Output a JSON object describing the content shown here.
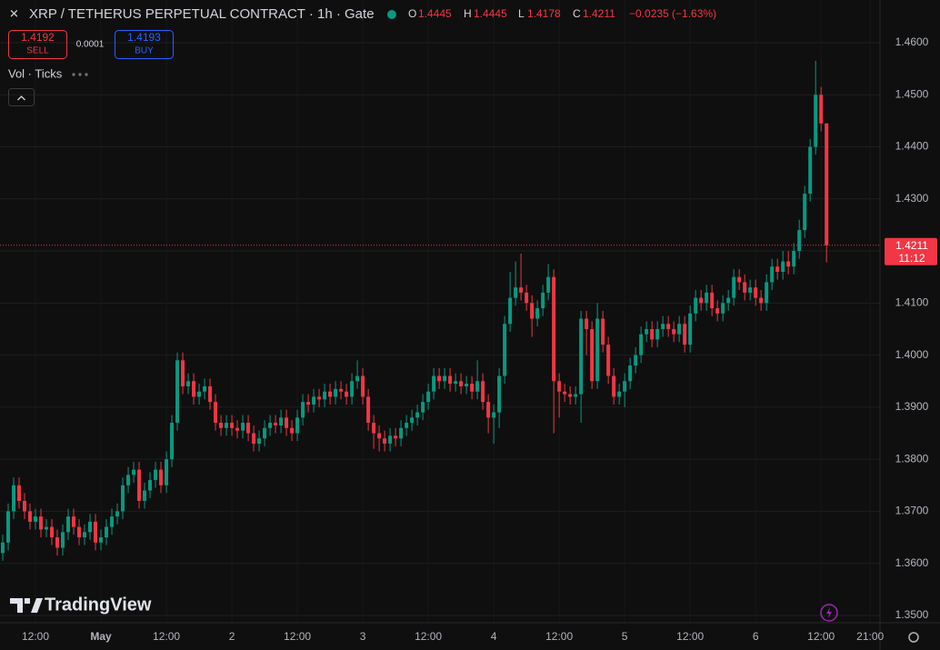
{
  "header": {
    "symbol": "XRP / TETHERUS PERPETUAL CONTRACT · 1h · Gate",
    "o": "O",
    "h": "H",
    "l": "L",
    "c": "C",
    "change": "−0.0235 (−1.63%)"
  },
  "trade": {
    "sell_price": "1.4192",
    "sell": "SELL",
    "spread": "0.0001",
    "buy_price": "1.4193",
    "buy": "BUY"
  },
  "indicator": "Vol · Ticks",
  "countdown": "11:12",
  "brand": "TradingView",
  "chart_data": {
    "type": "candlestick",
    "up_color": "#089981",
    "down_color": "#f23645",
    "grid": true,
    "xlim": [
      -0.5,
      160.8
    ],
    "ylim": [
      1.3486,
      1.4682
    ],
    "yticks": [
      {
        "value": 1.35,
        "label": "1.3500"
      },
      {
        "value": 1.36,
        "label": "1.3600"
      },
      {
        "value": 1.37,
        "label": "1.3700"
      },
      {
        "value": 1.38,
        "label": "1.3800"
      },
      {
        "value": 1.39,
        "label": "1.3900"
      },
      {
        "value": 1.4,
        "label": "1.4000"
      },
      {
        "value": 1.41,
        "label": "1.4100"
      },
      {
        "value": 1.42,
        "label": "1.4200"
      },
      {
        "value": 1.43,
        "label": "1.4300"
      },
      {
        "value": 1.44,
        "label": "1.4400"
      },
      {
        "value": 1.45,
        "label": "1.4500"
      },
      {
        "value": 1.46,
        "label": "1.4600"
      }
    ],
    "xticks": [
      {
        "value": 6,
        "label": "12:00"
      },
      {
        "value": 18,
        "label": "May"
      },
      {
        "value": 30,
        "label": "12:00"
      },
      {
        "value": 42,
        "label": "2"
      },
      {
        "value": 54,
        "label": "12:00"
      },
      {
        "value": 66,
        "label": "3"
      },
      {
        "value": 78,
        "label": "12:00"
      },
      {
        "value": 90,
        "label": "4"
      },
      {
        "value": 102,
        "label": "12:00"
      },
      {
        "value": 114,
        "label": "5"
      },
      {
        "value": 126,
        "label": "12:00"
      },
      {
        "value": 138,
        "label": "6"
      },
      {
        "value": 150,
        "label": "12:00"
      },
      {
        "value": 159,
        "label": "21:00"
      }
    ],
    "open": [
      1.362,
      1.364,
      1.37,
      1.375,
      1.372,
      1.37,
      1.368,
      1.369,
      1.3665,
      1.367,
      1.365,
      1.363,
      1.366,
      1.369,
      1.367,
      1.365,
      1.366,
      1.368,
      1.364,
      1.365,
      1.367,
      1.369,
      1.37,
      1.375,
      1.377,
      1.378,
      1.372,
      1.374,
      1.376,
      1.378,
      1.375,
      1.38,
      1.387,
      1.399,
      1.394,
      1.395,
      1.392,
      1.393,
      1.394,
      1.391,
      1.387,
      1.386,
      1.387,
      1.386,
      1.3855,
      1.387,
      1.385,
      1.383,
      1.384,
      1.386,
      1.387,
      1.3865,
      1.388,
      1.386,
      1.385,
      1.388,
      1.391,
      1.3905,
      1.392,
      1.3915,
      1.393,
      1.392,
      1.3935,
      1.393,
      1.392,
      1.395,
      1.396,
      1.392,
      1.387,
      1.385,
      1.384,
      1.383,
      1.3845,
      1.384,
      1.386,
      1.387,
      1.388,
      1.389,
      1.391,
      1.393,
      1.396,
      1.395,
      1.396,
      1.3945,
      1.395,
      1.394,
      1.3945,
      1.393,
      1.395,
      1.391,
      1.388,
      1.389,
      1.396,
      1.406,
      1.411,
      1.413,
      1.412,
      1.41,
      1.407,
      1.409,
      1.412,
      1.415,
      1.395,
      1.393,
      1.3925,
      1.392,
      1.3925,
      1.407,
      1.405,
      1.395,
      1.407,
      1.402,
      1.396,
      1.392,
      1.393,
      1.395,
      1.398,
      1.4,
      1.404,
      1.405,
      1.403,
      1.405,
      1.406,
      1.405,
      1.404,
      1.406,
      1.402,
      1.408,
      1.411,
      1.41,
      1.412,
      1.409,
      1.408,
      1.41,
      1.411,
      1.415,
      1.414,
      1.412,
      1.413,
      1.411,
      1.41,
      1.414,
      1.417,
      1.416,
      1.418,
      1.417,
      1.42,
      1.424,
      1.431,
      1.44,
      1.45,
      1.4445
    ],
    "high": [
      1.3655,
      1.3715,
      1.3765,
      1.3765,
      1.3735,
      1.3715,
      1.3705,
      1.3705,
      1.3685,
      1.3685,
      1.3665,
      1.3675,
      1.3705,
      1.3705,
      1.3685,
      1.3675,
      1.3695,
      1.3695,
      1.3665,
      1.3685,
      1.3705,
      1.3715,
      1.3765,
      1.3785,
      1.3795,
      1.3795,
      1.3755,
      1.3775,
      1.3795,
      1.3795,
      1.3815,
      1.3885,
      1.4005,
      1.4005,
      1.3965,
      1.3965,
      1.3945,
      1.3955,
      1.3955,
      1.3925,
      1.3885,
      1.3885,
      1.3885,
      1.3875,
      1.3885,
      1.3885,
      1.3865,
      1.3855,
      1.3875,
      1.3885,
      1.3885,
      1.3895,
      1.3895,
      1.3875,
      1.3895,
      1.3925,
      1.3925,
      1.3935,
      1.3935,
      1.3945,
      1.3945,
      1.395,
      1.395,
      1.3945,
      1.3965,
      1.399,
      1.3975,
      1.3935,
      1.3885,
      1.3865,
      1.3855,
      1.386,
      1.386,
      1.3875,
      1.3885,
      1.3895,
      1.3905,
      1.3925,
      1.3945,
      1.3975,
      1.3975,
      1.3975,
      1.3975,
      1.3965,
      1.3965,
      1.396,
      1.396,
      1.399,
      1.3965,
      1.3925,
      1.3905,
      1.3975,
      1.4075,
      1.416,
      1.418,
      1.4195,
      1.4135,
      1.4115,
      1.4105,
      1.4135,
      1.4175,
      1.4165,
      1.3965,
      1.3945,
      1.394,
      1.394,
      1.4085,
      1.4085,
      1.4065,
      1.41,
      1.4085,
      1.4035,
      1.3975,
      1.3945,
      1.3965,
      1.3995,
      1.4015,
      1.4055,
      1.4065,
      1.4065,
      1.4065,
      1.4075,
      1.4075,
      1.4065,
      1.4075,
      1.4075,
      1.4095,
      1.4125,
      1.4125,
      1.4135,
      1.4135,
      1.4105,
      1.4115,
      1.4125,
      1.4165,
      1.4165,
      1.4155,
      1.4145,
      1.4145,
      1.4125,
      1.4155,
      1.4185,
      1.4185,
      1.42,
      1.42,
      1.4215,
      1.426,
      1.4325,
      1.4415,
      1.4565,
      1.4515,
      1.4445
    ],
    "low": [
      1.3605,
      1.3625,
      1.3685,
      1.3705,
      1.3685,
      1.3665,
      1.3665,
      1.365,
      1.365,
      1.3635,
      1.3615,
      1.3615,
      1.3645,
      1.3655,
      1.3635,
      1.3635,
      1.3645,
      1.3625,
      1.3625,
      1.3635,
      1.3655,
      1.3675,
      1.3685,
      1.3735,
      1.3755,
      1.3705,
      1.3705,
      1.3725,
      1.3745,
      1.3735,
      1.3735,
      1.3785,
      1.3855,
      1.3925,
      1.3925,
      1.3905,
      1.3905,
      1.3915,
      1.3895,
      1.3855,
      1.3845,
      1.3845,
      1.3845,
      1.384,
      1.384,
      1.3835,
      1.3815,
      1.3815,
      1.3825,
      1.3845,
      1.385,
      1.385,
      1.3845,
      1.3835,
      1.3835,
      1.3865,
      1.389,
      1.389,
      1.39,
      1.39,
      1.3905,
      1.3905,
      1.3915,
      1.3905,
      1.3905,
      1.3935,
      1.3905,
      1.3855,
      1.382,
      1.3815,
      1.3815,
      1.3815,
      1.3825,
      1.3825,
      1.3845,
      1.3855,
      1.3865,
      1.3875,
      1.3895,
      1.3915,
      1.3935,
      1.3935,
      1.393,
      1.393,
      1.3925,
      1.3925,
      1.3915,
      1.3915,
      1.3895,
      1.385,
      1.383,
      1.386,
      1.3945,
      1.4045,
      1.4095,
      1.4105,
      1.4085,
      1.4035,
      1.4055,
      1.4075,
      1.4105,
      1.385,
      1.388,
      1.391,
      1.3905,
      1.3905,
      1.387,
      1.4,
      1.3935,
      1.3935,
      1.4005,
      1.3945,
      1.3905,
      1.3905,
      1.39,
      1.3935,
      1.3965,
      1.3985,
      1.4025,
      1.4015,
      1.4015,
      1.4035,
      1.4035,
      1.4025,
      1.4025,
      1.4005,
      1.4005,
      1.4065,
      1.4085,
      1.4085,
      1.4075,
      1.4065,
      1.4065,
      1.4085,
      1.4095,
      1.4125,
      1.4105,
      1.4105,
      1.4095,
      1.4085,
      1.4085,
      1.4125,
      1.4145,
      1.4145,
      1.4155,
      1.4155,
      1.4185,
      1.4225,
      1.4295,
      1.4385,
      1.443,
      1.4178
    ],
    "close": [
      1.364,
      1.37,
      1.375,
      1.372,
      1.37,
      1.368,
      1.369,
      1.3665,
      1.367,
      1.365,
      1.363,
      1.366,
      1.369,
      1.367,
      1.365,
      1.366,
      1.368,
      1.364,
      1.365,
      1.367,
      1.369,
      1.37,
      1.375,
      1.377,
      1.378,
      1.372,
      1.374,
      1.376,
      1.378,
      1.375,
      1.38,
      1.387,
      1.399,
      1.394,
      1.395,
      1.392,
      1.393,
      1.394,
      1.391,
      1.387,
      1.386,
      1.387,
      1.386,
      1.3855,
      1.387,
      1.385,
      1.383,
      1.384,
      1.386,
      1.387,
      1.3865,
      1.388,
      1.386,
      1.385,
      1.388,
      1.391,
      1.3905,
      1.392,
      1.3915,
      1.393,
      1.392,
      1.3935,
      1.393,
      1.392,
      1.395,
      1.396,
      1.392,
      1.387,
      1.385,
      1.384,
      1.383,
      1.3845,
      1.384,
      1.386,
      1.387,
      1.388,
      1.389,
      1.391,
      1.393,
      1.396,
      1.395,
      1.396,
      1.3945,
      1.395,
      1.394,
      1.3945,
      1.393,
      1.395,
      1.391,
      1.388,
      1.389,
      1.396,
      1.406,
      1.411,
      1.413,
      1.412,
      1.41,
      1.407,
      1.409,
      1.412,
      1.415,
      1.395,
      1.393,
      1.3925,
      1.392,
      1.3925,
      1.407,
      1.405,
      1.395,
      1.407,
      1.402,
      1.396,
      1.392,
      1.393,
      1.395,
      1.398,
      1.4,
      1.404,
      1.405,
      1.403,
      1.405,
      1.406,
      1.405,
      1.404,
      1.406,
      1.402,
      1.408,
      1.411,
      1.41,
      1.412,
      1.409,
      1.408,
      1.41,
      1.411,
      1.415,
      1.414,
      1.412,
      1.413,
      1.411,
      1.41,
      1.414,
      1.417,
      1.416,
      1.418,
      1.417,
      1.42,
      1.424,
      1.431,
      1.44,
      1.45,
      1.4445,
      1.4211
    ]
  }
}
